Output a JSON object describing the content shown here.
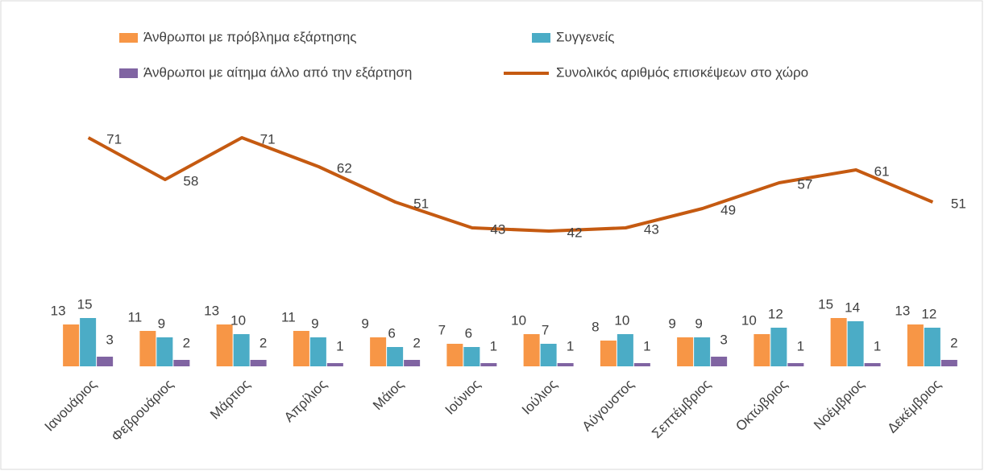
{
  "chart_data": {
    "type": "bar",
    "categories": [
      "Ιανουάριος",
      "Φεβρουάριος",
      "Μάρτιος",
      "Απρίλιος",
      "Μάιος",
      "Ιούνιος",
      "Ιούλιος",
      "Αύγουστος",
      "Σεπτέμβριος",
      "Οκτώβριος",
      "Νοέμβριος",
      "Δεκέμβριος"
    ],
    "series": [
      {
        "name": "Άνθρωποι με πρόβλημα εξάρτησης",
        "color": "#f79646",
        "values": [
          13,
          11,
          13,
          11,
          9,
          7,
          10,
          8,
          9,
          10,
          15,
          13
        ]
      },
      {
        "name": "Συγγενείς",
        "color": "#4bacc6",
        "values": [
          15,
          9,
          10,
          9,
          6,
          6,
          7,
          10,
          9,
          12,
          14,
          12
        ]
      },
      {
        "name": "Άνθρωποι με αίτημα άλλο από την εξάρτηση",
        "color": "#8064a2",
        "values": [
          3,
          2,
          2,
          1,
          2,
          1,
          1,
          1,
          3,
          1,
          1,
          2
        ]
      },
      {
        "name": "Συνολικός αριθμός επισκέψεων στο χώρο",
        "color": "#c55a11",
        "type": "line",
        "values": [
          71,
          58,
          71,
          62,
          51,
          43,
          42,
          43,
          49,
          57,
          61,
          51
        ]
      }
    ],
    "ylim": [
      0,
      80
    ]
  }
}
